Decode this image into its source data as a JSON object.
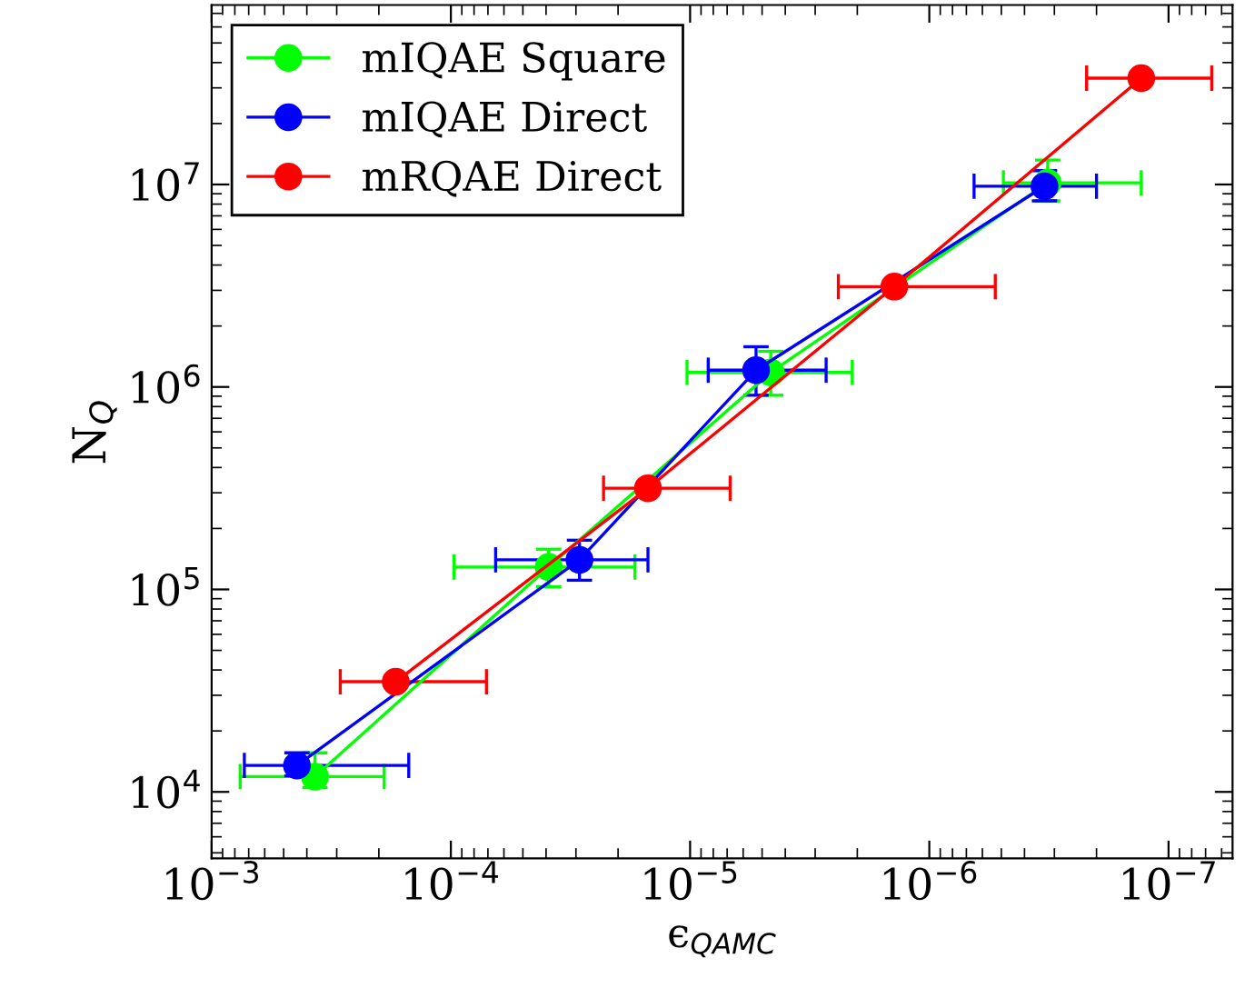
{
  "chart_data": {
    "type": "line",
    "xlabel": "ϵ$_{QAMC}$",
    "ylabel": "N$_{Q}$",
    "log": "xy",
    "grid": false,
    "legend": "top left",
    "marker": "circle",
    "line_style": "solid",
    "xlim": [
      0.001,
      5.4e-08
    ],
    "ylim": [
      4700,
      77000000
    ],
    "xticks": [
      {
        "value": 0.001,
        "label": "10$^{−3}$"
      },
      {
        "value": 0.0001,
        "label": "10$^{−4}$"
      },
      {
        "value": 1e-05,
        "label": "10$^{−5}$"
      },
      {
        "value": 1e-06,
        "label": "10$^{−6}$"
      },
      {
        "value": 1e-07,
        "label": "10$^{−7}$"
      }
    ],
    "yticks": [
      {
        "value": 10000,
        "label": "10$^{4}$"
      },
      {
        "value": 100000,
        "label": "10$^{5}$"
      },
      {
        "value": 1000000,
        "label": "10$^{6}$"
      },
      {
        "value": 10000000,
        "label": "10$^{7}$"
      }
    ],
    "series": [
      {
        "name": "mIQAE Square",
        "color": "#00ff00",
        "x": [
          0.00037,
          3.9e-05,
          4.6e-06,
          3.2e-07
        ],
        "values": [
          11900,
          129000,
          1180000,
          10200000
        ],
        "errors": [
          [
            10500,
            15600
          ],
          [
            103000,
            158000
          ],
          [
            910000,
            1500000
          ],
          [
            8300000,
            13200000
          ]
        ],
        "xerrors": [
          [
            0.00019,
            0.00076
          ],
          [
            1.7e-05,
            9.7e-05
          ],
          [
            2.1e-06,
            1.03e-05
          ],
          [
            1.3e-07,
            4.9e-07
          ]
        ]
      },
      {
        "name": "mIQAE Direct",
        "color": "#0000ff",
        "x": [
          0.00044,
          2.9e-05,
          5.3e-06,
          3.3e-07
        ],
        "values": [
          13500,
          140000,
          1210000,
          9800000
        ],
        "errors": [
          [
            12000,
            15600
          ],
          [
            111000,
            175000
          ],
          [
            910000,
            1580000
          ],
          [
            8300000,
            11700000
          ]
        ],
        "xerrors": [
          [
            0.00015,
            0.00073
          ],
          [
            1.5e-05,
            6.5e-05
          ],
          [
            2.7e-06,
            8.4e-06
          ],
          [
            2e-07,
            6.5e-07
          ]
        ]
      },
      {
        "name": "mRQAE Direct",
        "color": "#ff0000",
        "x": [
          0.00017,
          1.5e-05,
          1.4e-06,
          1.3e-07
        ],
        "values": [
          35000,
          316000,
          3130000,
          33500000
        ],
        "xerrors": [
          [
            7.1e-05,
            0.00029
          ],
          [
            6.8e-06,
            2.3e-05
          ],
          [
            5.3e-07,
            2.4e-06
          ],
          [
            6.6e-08,
            2.2e-07
          ]
        ]
      }
    ]
  }
}
